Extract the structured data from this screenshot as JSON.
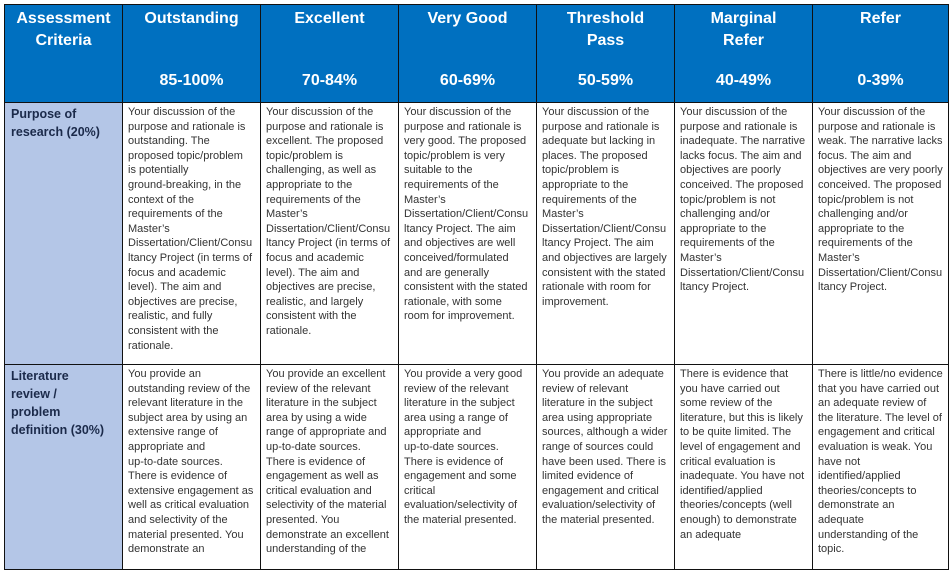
{
  "header": {
    "criteria_label": "Assessment\nCriteria",
    "bands": [
      {
        "title": "Outstanding",
        "range": "85-100%"
      },
      {
        "title": "Excellent",
        "range": "70-84%"
      },
      {
        "title": "Very Good",
        "range": "60-69%"
      },
      {
        "title": "Threshold\nPass",
        "range": "50-59%"
      },
      {
        "title": "Marginal\nRefer",
        "range": "40-49%"
      },
      {
        "title": "Refer",
        "range": "0-39%"
      }
    ]
  },
  "rows": [
    {
      "criterion": "Purpose of\nresearch (20%)",
      "cells": [
        "Your discussion of the\npurpose and rationale is\noutstanding. The\nproposed topic/problem\nis potentially\nground-breaking, in the\ncontext of the\nrequirements of the\nMaster’s\nDissertation/Client/Consu\nltancy Project (in terms of\nfocus and academic\nlevel). The aim and\nobjectives are precise,\nrealistic, and fully\nconsistent with the\nrationale.",
        "Your discussion of the\npurpose and rationale is\nexcellent. The proposed\ntopic/problem is\nchallenging, as well as\nappropriate to the\nrequirements of the\nMaster’s\nDissertation/Client/Consu\nltancy Project (in terms of\nfocus and academic\nlevel). The aim and\nobjectives are precise,\nrealistic, and largely\nconsistent with the\nrationale.",
        "Your discussion of the\npurpose and rationale is\nvery good. The proposed\ntopic/problem is very\nsuitable to the\nrequirements of the\nMaster’s\nDissertation/Client/Consu\nltancy Project. The aim\nand objectives are well\nconceived/formulated\nand are generally\nconsistent with the stated\nrationale, with some\nroom for improvement.",
        "Your discussion of the\npurpose and rationale is\nadequate but lacking in\nplaces. The proposed\ntopic/problem is\nappropriate to the\nrequirements of the\nMaster’s\nDissertation/Client/Consu\nltancy Project. The aim\nand objectives are largely\nconsistent with the stated\nrationale with room for\nimprovement.",
        "Your discussion of the\npurpose and rationale is\ninadequate. The narrative\nlacks focus. The aim and\nobjectives are poorly\nconceived. The proposed\ntopic/problem is not\nchallenging and/or\nappropriate to the\nrequirements of the\nMaster’s\nDissertation/Client/Consu\nltancy Project.",
        "Your discussion of the\npurpose and rationale is\nweak. The narrative lacks\nfocus. The aim and\nobjectives are very poorly\nconceived. The proposed\ntopic/problem is not\nchallenging and/or\nappropriate to the\nrequirements of the\nMaster’s\nDissertation/Client/Consu\nltancy Project."
      ]
    },
    {
      "criterion": "Literature\nreview /\nproblem\ndefinition (30%)",
      "cells": [
        "You provide an\noutstanding review of the\nrelevant literature in the\nsubject area by using an\nextensive range of\nappropriate and\nup-to-date sources.\nThere is evidence of\nextensive engagement as\nwell as critical evaluation\nand selectivity of the\nmaterial presented. You\ndemonstrate an",
        "You provide an excellent\nreview of the relevant\nliterature in the subject\narea by using a wide\nrange of appropriate and\nup-to-date sources.\nThere is evidence of\nengagement as well as\ncritical evaluation and\nselectivity of the material\npresented. You\ndemonstrate an excellent\nunderstanding of the",
        "You provide a very good\nreview of the relevant\nliterature in the subject\narea using a range of\nappropriate and\nup-to-date sources.\nThere is evidence of\nengagement and some\ncritical\nevaluation/selectivity of\nthe material presented.",
        "You provide an adequate\nreview of relevant\nliterature in the subject\narea using appropriate\nsources, although a wider\nrange of sources could\nhave been used. There is\nlimited evidence of\nengagement and critical\nevaluation/selectivity of\nthe material presented.",
        "There is evidence that\nyou have carried out\nsome review of the\nliterature, but this is likely\nto be quite limited. The\nlevel of engagement and\ncritical evaluation is\ninadequate. You have not\nidentified/applied\ntheories/concepts (well\nenough) to demonstrate\nan adequate",
        "There is little/no evidence\nthat you have carried out\nan adequate review of\nthe literature. The level of\nengagement and critical\nevaluation is weak. You\nhave not\nidentified/applied\ntheories/concepts to\ndemonstrate an adequate\nunderstanding of the\ntopic."
      ]
    }
  ],
  "colors": {
    "header_bg": "#0070c0",
    "criteria_bg": "#b4c6e7"
  }
}
